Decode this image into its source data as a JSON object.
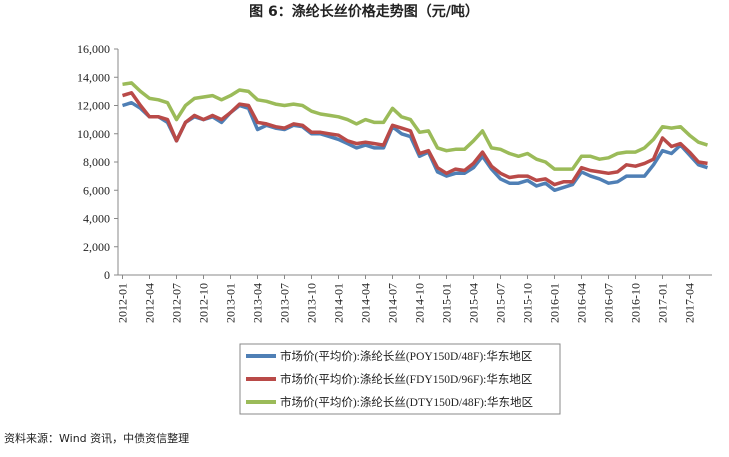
{
  "chart_data": {
    "type": "line",
    "title": "图 6：涤纶长丝价格走势图（元/吨）",
    "source": "资料来源：Wind 资讯，中债资信整理",
    "categories": [
      "2012-01",
      null,
      null,
      "2012-04",
      null,
      null,
      "2012-07",
      null,
      null,
      "2012-10",
      null,
      null,
      "2013-01",
      null,
      null,
      "2013-04",
      null,
      null,
      "2013-07",
      null,
      null,
      "2013-10",
      null,
      null,
      "2014-01",
      null,
      null,
      "2014-04",
      null,
      null,
      "2014-07",
      null,
      null,
      "2014-10",
      null,
      null,
      "2015-01",
      null,
      null,
      "2015-04",
      null,
      null,
      "2015-07",
      null,
      null,
      "2015-10",
      null,
      null,
      "2016-01",
      null,
      null,
      "2016-04",
      null,
      null,
      "2016-07",
      null,
      null,
      "2016-10",
      null,
      null,
      "2017-01",
      null,
      null,
      "2017-04",
      null,
      null
    ],
    "ylim": [
      0,
      16000
    ],
    "yticks": [
      0,
      {
        "value": 2000,
        "label": "2,000"
      },
      {
        "value": 4000,
        "label": "4,000"
      },
      {
        "value": 6000,
        "label": "6,000"
      },
      {
        "value": 8000,
        "label": "8,000"
      },
      {
        "value": 10000,
        "label": "10,000"
      },
      {
        "value": 12000,
        "label": "12,000"
      },
      {
        "value": 14000,
        "label": "14,000"
      },
      {
        "value": 16000,
        "label": "16,000"
      }
    ],
    "series": [
      {
        "name": "市场价(平均价):涤纶长丝(POY150D/48F):华东地区",
        "color": "#4f7fb5",
        "values": [
          12000,
          12200,
          11800,
          11200,
          11200,
          10800,
          9500,
          10800,
          11200,
          11000,
          11200,
          10800,
          11500,
          12000,
          11800,
          10300,
          10600,
          10400,
          10300,
          10600,
          10500,
          10000,
          10000,
          9800,
          9600,
          9300,
          9000,
          9200,
          9000,
          9000,
          10500,
          10000,
          9800,
          8400,
          8700,
          7300,
          7000,
          7200,
          7200,
          7600,
          8400,
          7500,
          6800,
          6500,
          6500,
          6700,
          6300,
          6500,
          6000,
          6200,
          6400,
          7300,
          7000,
          6800,
          6500,
          6600,
          7000,
          7000,
          7000,
          7800,
          8800,
          8600,
          9200,
          8500,
          7800,
          7600
        ]
      },
      {
        "name": "市场价(平均价):涤纶长丝(FDY150D/96F):华东地区",
        "color": "#b94a48",
        "values": [
          12700,
          12900,
          12000,
          11200,
          11200,
          11000,
          9500,
          10800,
          11300,
          11000,
          11300,
          11000,
          11500,
          12100,
          12000,
          10800,
          10700,
          10500,
          10400,
          10700,
          10600,
          10100,
          10100,
          10000,
          9900,
          9500,
          9300,
          9400,
          9300,
          9200,
          10600,
          10400,
          10200,
          8600,
          8800,
          7600,
          7200,
          7500,
          7400,
          7900,
          8700,
          7700,
          7200,
          6900,
          7000,
          7000,
          6700,
          6800,
          6400,
          6600,
          6600,
          7600,
          7400,
          7300,
          7200,
          7300,
          7800,
          7700,
          7900,
          8200,
          9700,
          9100,
          9300,
          8700,
          8000,
          7900
        ]
      },
      {
        "name": "市场价(平均价):涤纶长丝(DTY150D/48F):华东地区",
        "color": "#9bbb59",
        "values": [
          13500,
          13600,
          13000,
          12500,
          12400,
          12200,
          11000,
          12000,
          12500,
          12600,
          12700,
          12400,
          12700,
          13100,
          13000,
          12400,
          12300,
          12100,
          12000,
          12100,
          12000,
          11600,
          11400,
          11300,
          11200,
          11000,
          10700,
          11000,
          10800,
          10800,
          11800,
          11200,
          11000,
          10100,
          10200,
          9000,
          8800,
          8900,
          8900,
          9500,
          10200,
          9000,
          8900,
          8600,
          8400,
          8600,
          8200,
          8000,
          7500,
          7500,
          7500,
          8400,
          8400,
          8200,
          8300,
          8600,
          8700,
          8700,
          9000,
          9600,
          10500,
          10400,
          10500,
          9900,
          9400,
          9200
        ]
      }
    ]
  }
}
